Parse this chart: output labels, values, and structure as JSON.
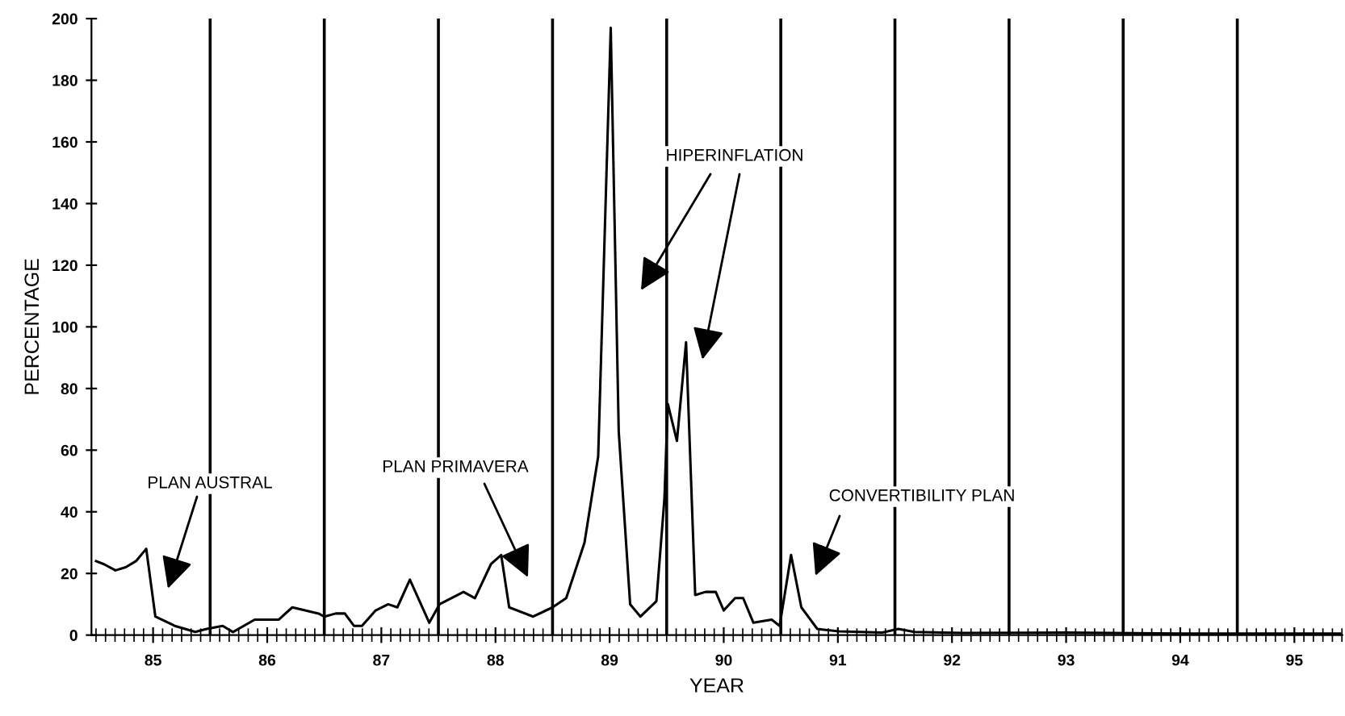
{
  "chart_data": {
    "type": "line",
    "xlabel": "YEAR",
    "ylabel": "PERCENTAGE",
    "xlim": [
      84.46,
      95.42
    ],
    "xticks": [
      85,
      86,
      87,
      88,
      89,
      90,
      91,
      92,
      93,
      94,
      95
    ],
    "ylim": [
      0,
      200
    ],
    "yticks": [
      0,
      20,
      40,
      60,
      80,
      100,
      120,
      140,
      160,
      180,
      200
    ],
    "grid": false,
    "legend": false,
    "marker": "none",
    "line_style": "solid",
    "series": [
      {
        "color": "#000000",
        "x": [
          84.5,
          84.57,
          84.67,
          84.76,
          84.85,
          84.94,
          85.02,
          85.19,
          85.37,
          85.47,
          85.61,
          85.7,
          85.89,
          86.1,
          86.22,
          86.45,
          86.5,
          86.6,
          86.68,
          86.76,
          86.83,
          86.95,
          87.06,
          87.14,
          87.25,
          87.42,
          87.51,
          87.72,
          87.82,
          87.96,
          88.05,
          88.12,
          88.33,
          88.5,
          88.62,
          88.78,
          88.9,
          89.01,
          89.08,
          89.18,
          89.27,
          89.41,
          89.48,
          89.51,
          89.59,
          89.67,
          89.75,
          89.84,
          89.93,
          90.0,
          90.1,
          90.17,
          90.26,
          90.42,
          90.49,
          90.59,
          90.68,
          90.82,
          91.01,
          91.39,
          91.53,
          91.67,
          92.09,
          93.0,
          94.0,
          95.0,
          95.4
        ],
        "values": [
          24,
          23,
          21,
          22,
          24,
          28,
          6,
          3,
          1,
          2,
          3,
          1,
          5,
          5,
          9,
          7,
          6,
          7,
          7,
          3,
          3,
          8,
          10,
          9,
          18,
          4,
          10,
          14,
          12,
          23,
          26,
          9,
          6,
          9,
          12,
          30,
          58,
          197,
          66,
          10,
          6,
          11,
          44,
          75,
          63,
          95,
          13,
          14,
          14,
          8,
          12,
          12,
          4,
          5,
          3,
          26,
          9,
          2,
          1.2,
          0.8,
          2,
          1,
          0.7,
          0.8,
          0.5,
          0.5,
          0.5
        ]
      }
    ],
    "ref_lines": [
      {
        "axis": "x",
        "value": 85.5,
        "color": "#000000"
      },
      {
        "axis": "x",
        "value": 86.5,
        "color": "#000000"
      },
      {
        "axis": "x",
        "value": 87.5,
        "color": "#000000"
      },
      {
        "axis": "x",
        "value": 88.5,
        "color": "#000000"
      },
      {
        "axis": "x",
        "value": 89.5,
        "color": "#000000"
      },
      {
        "axis": "x",
        "value": 90.5,
        "color": "#000000"
      },
      {
        "axis": "x",
        "value": 91.5,
        "color": "#000000"
      },
      {
        "axis": "x",
        "value": 92.5,
        "color": "#000000"
      },
      {
        "axis": "x",
        "value": 93.5,
        "color": "#000000"
      },
      {
        "axis": "x",
        "value": 94.5,
        "color": "#000000"
      }
    ],
    "annotations": [
      "PLAN AUSTRAL",
      "PLAN PRIMAVERA",
      "HIPERINFLATION",
      "CONVERTIBILITY PLAN"
    ]
  }
}
